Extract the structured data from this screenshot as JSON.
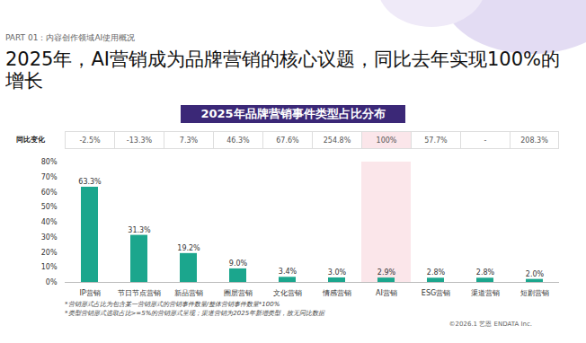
{
  "page": {
    "part": "PART 01：内容创作领域AI使用概况",
    "headline": "2025年，AI营销成为品牌营销的核心议题，同比去年实现100%的增长",
    "footnotes": [
      "*营销形式占比为包含某一营销形式的营销事件数量/整体营销事件数量*100%",
      "*类型营销形式选取占比>=5%的营销形式呈现；渠道营销为2025年新增类型，故无同比数据"
    ],
    "copyright": "©2026.1 艺恩 ENDATA Inc."
  },
  "chart_data": {
    "type": "bar",
    "title": "2025年品牌营销事件类型占比分布",
    "categories": [
      "IP营销",
      "节日节点营销",
      "新品营销",
      "圈层营销",
      "文化营销",
      "情感营销",
      "AI营销",
      "ESG营销",
      "渠道营销",
      "短剧营销"
    ],
    "values": [
      63.3,
      31.3,
      19.2,
      9.0,
      3.4,
      3.0,
      2.9,
      2.8,
      2.8,
      2.0
    ],
    "value_labels": [
      "63.3%",
      "31.3%",
      "19.2%",
      "9.0%",
      "3.4%",
      "3.0%",
      "2.9%",
      "2.8%",
      "2.8%",
      "2.0%"
    ],
    "yoy_label": "同比变化",
    "yoy_values": [
      -2.5,
      -13.3,
      7.3,
      46.3,
      67.6,
      254.8,
      100,
      57.7,
      null,
      208.3
    ],
    "yoy_value_labels": [
      "-2.5%",
      "-13.3%",
      "7.3%",
      "46.3%",
      "67.6%",
      "254.8%",
      "100%",
      "57.7%",
      "-",
      "208.3%"
    ],
    "highlight": "AI营销",
    "color": "#1ba68d",
    "ylim": [
      0,
      80
    ],
    "yticks": [
      {
        "value": 0,
        "label": "0%"
      },
      {
        "value": 10,
        "label": "10%"
      },
      {
        "value": 20,
        "label": "20%"
      },
      {
        "value": 30,
        "label": "30%"
      },
      {
        "value": 40,
        "label": "40%"
      },
      {
        "value": 50,
        "label": "50%"
      },
      {
        "value": 60,
        "label": "60%"
      },
      {
        "value": 70,
        "label": "70%"
      },
      {
        "value": 80,
        "label": "80%"
      }
    ],
    "grid": false,
    "data_labels": true
  }
}
